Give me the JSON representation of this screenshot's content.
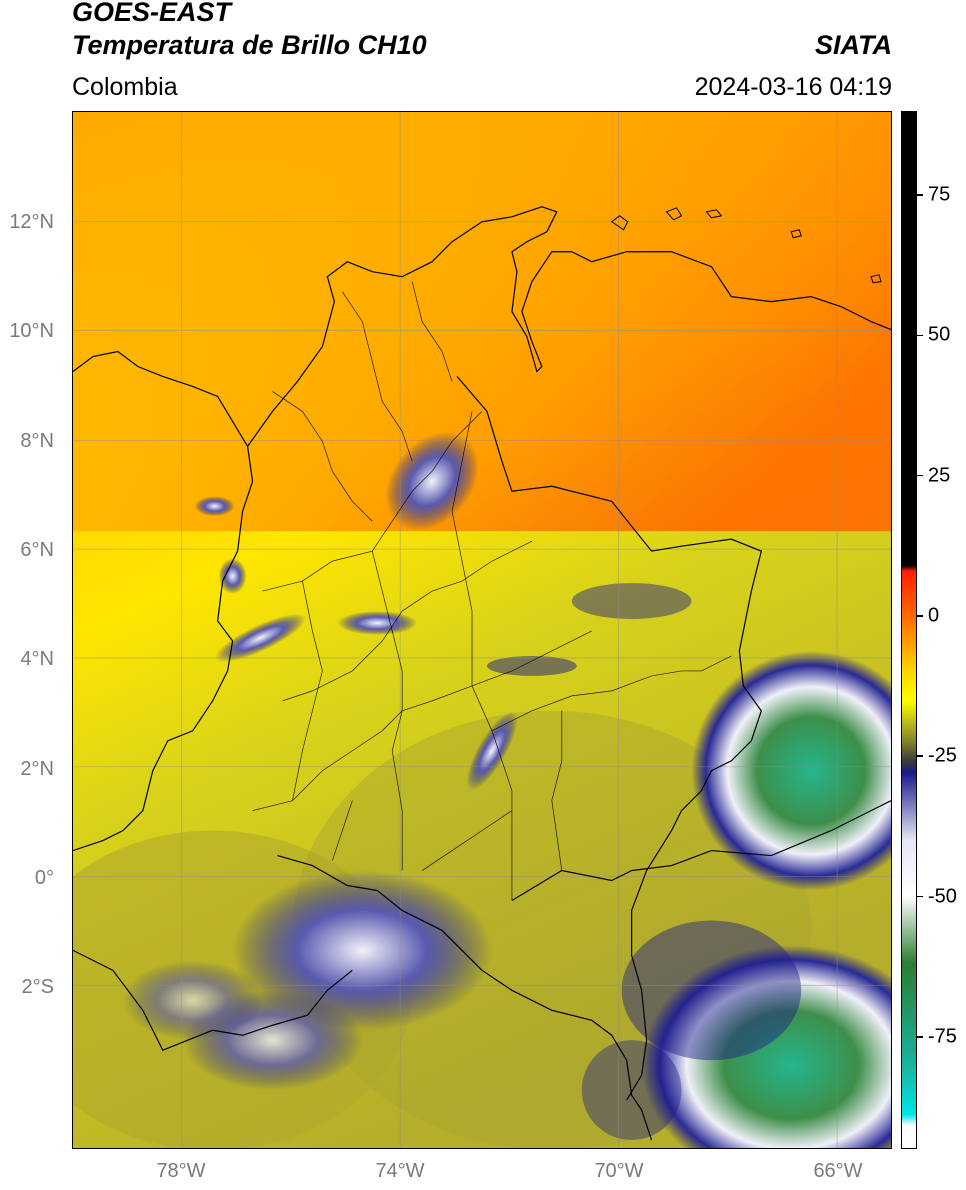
{
  "header": {
    "satellite": "GOES-EAST",
    "product": "Temperatura de Brillo CH10",
    "region": "Colombia",
    "agency": "SIATA",
    "datetime": "2024-03-16 04:19"
  },
  "map": {
    "lat_labels": [
      "12°N",
      "10°N",
      "8°N",
      "6°N",
      "4°N",
      "2°N",
      "0°",
      "2°S"
    ],
    "lon_labels": [
      "78°W",
      "74°W",
      "70°W",
      "66°W"
    ],
    "extent": {
      "lon_min": -80,
      "lon_max": -65,
      "lat_min": -5,
      "lat_max": 14
    },
    "grid": true
  },
  "colorbar": {
    "ticks": [
      "75",
      "50",
      "25",
      "0",
      "-25",
      "-50",
      "-75"
    ],
    "range": [
      -95,
      90
    ],
    "stops": [
      {
        "value": 90,
        "color": "#000000"
      },
      {
        "value": 9,
        "color": "#000000"
      },
      {
        "value": 8,
        "color": "#ff1e00"
      },
      {
        "value": 0,
        "color": "#ff6a00"
      },
      {
        "value": -10,
        "color": "#ffd700"
      },
      {
        "value": -15,
        "color": "#ffff00"
      },
      {
        "value": -22,
        "color": "#8a8a2a"
      },
      {
        "value": -26,
        "color": "#3a3a3a"
      },
      {
        "value": -28,
        "color": "#1a1a8a"
      },
      {
        "value": -40,
        "color": "#e6e6f5"
      },
      {
        "value": -50,
        "color": "#ffffff"
      },
      {
        "value": -62,
        "color": "#2e7d32"
      },
      {
        "value": -80,
        "color": "#1ab3a0"
      },
      {
        "value": -89,
        "color": "#00e5e5"
      },
      {
        "value": -91,
        "color": "#ffffff"
      },
      {
        "value": -95,
        "color": "#ffffff"
      }
    ]
  }
}
